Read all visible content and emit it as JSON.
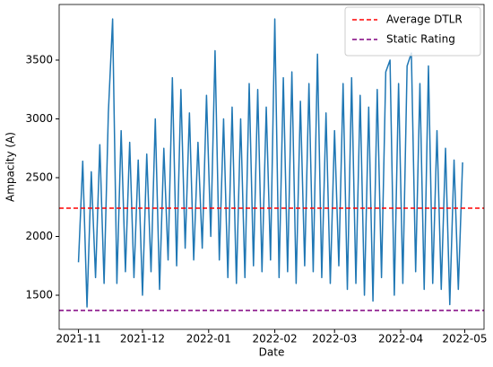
{
  "chart_data": {
    "type": "line",
    "x_label": "Date",
    "y_label": "Ampacity (A)",
    "x": [
      0,
      2,
      4,
      6,
      8,
      10,
      12,
      14,
      16,
      18,
      20,
      22,
      24,
      26,
      28,
      30,
      32,
      34,
      36,
      38,
      40,
      42,
      44,
      46,
      48,
      50,
      52,
      54,
      56,
      58,
      60,
      62,
      64,
      66,
      68,
      70,
      72,
      74,
      76,
      78,
      80,
      82,
      84,
      86,
      88,
      90,
      92,
      94,
      96,
      98,
      100,
      102,
      104,
      106,
      108,
      110,
      112,
      114,
      116,
      118,
      120,
      122,
      124,
      126,
      128,
      130,
      132,
      134,
      136,
      138,
      140,
      142,
      144,
      146,
      148,
      150,
      152,
      154,
      156,
      158,
      160,
      162,
      164,
      166,
      168,
      170,
      172,
      174,
      176,
      178,
      180
    ],
    "series": [
      {
        "color": "#1f77b4",
        "values": [
          1780,
          2640,
          1400,
          2550,
          1650,
          2780,
          1600,
          3050,
          3850,
          1600,
          2900,
          1700,
          2800,
          1650,
          2650,
          1500,
          2700,
          1700,
          3000,
          1550,
          2750,
          1800,
          3350,
          1750,
          3250,
          1900,
          3050,
          1800,
          2800,
          1900,
          3200,
          2000,
          3580,
          1800,
          3000,
          1650,
          3100,
          1600,
          3000,
          1650,
          3300,
          1750,
          3250,
          1700,
          3100,
          1800,
          3850,
          1650,
          3350,
          1700,
          3400,
          1600,
          3150,
          1750,
          3300,
          1700,
          3550,
          1650,
          3050,
          1600,
          2900,
          1750,
          3300,
          1550,
          3350,
          1600,
          3200,
          1500,
          3100,
          1450,
          3250,
          1650,
          3400,
          3500,
          1500,
          3300,
          1600,
          3450,
          3560,
          1700,
          3300,
          1550,
          3450,
          1600,
          2900,
          1550,
          2750,
          1420,
          2650,
          1550,
          2630
        ]
      }
    ],
    "reference_lines": [
      {
        "name": "Average DTLR",
        "value": 2240,
        "color": "#ff0000"
      },
      {
        "name": "Static Rating",
        "value": 1370,
        "color": "#800080"
      }
    ],
    "xlim": [
      -9.05,
      190.05
    ],
    "xticks": [
      {
        "value": 0,
        "label": "2021-11"
      },
      {
        "value": 30,
        "label": "2021-12"
      },
      {
        "value": 61,
        "label": "2022-01"
      },
      {
        "value": 92,
        "label": "2022-02"
      },
      {
        "value": 120,
        "label": "2022-03"
      },
      {
        "value": 151,
        "label": "2022-04"
      },
      {
        "value": 181,
        "label": "2022-05"
      }
    ],
    "ylim": [
      1210,
      3973
    ],
    "yticks": [
      1500,
      2000,
      2500,
      3000,
      3500
    ],
    "legend": "upper right"
  }
}
